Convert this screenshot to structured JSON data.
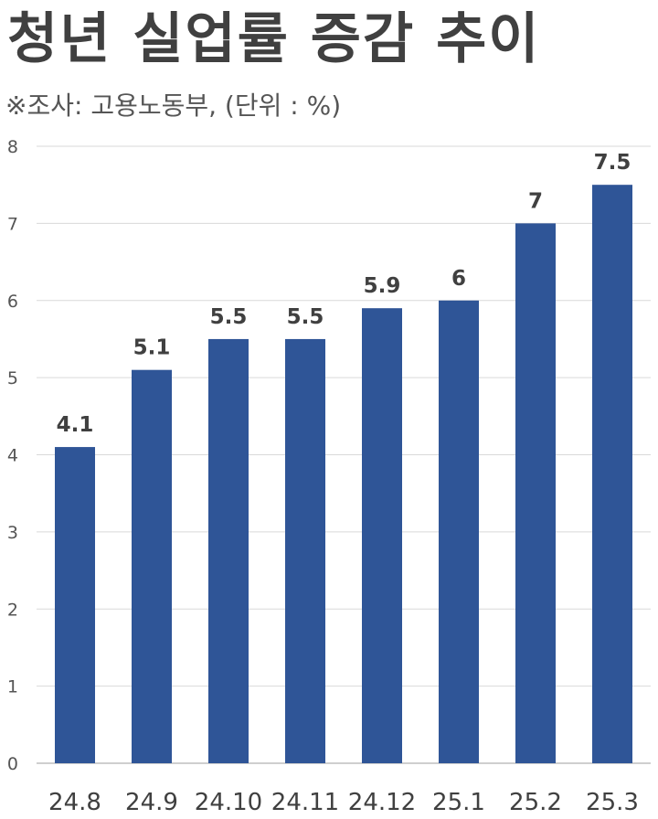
{
  "header": {
    "title": "청년 실업률 증감 추이",
    "subtitle": "※조사: 고용노동부, (단위 : %)"
  },
  "colors": {
    "bar": "#2f5597",
    "grid": "#d9d9d9",
    "axis": "#bfbfbf"
  },
  "chart_data": {
    "type": "bar",
    "title": "청년 실업률 증감 추이",
    "subtitle": "※조사: 고용노동부, (단위 : %)",
    "xlabel": "",
    "ylabel": "",
    "categories": [
      "24.8",
      "24.9",
      "24.10",
      "24.11",
      "24.12",
      "25.1",
      "25.2",
      "25.3"
    ],
    "values": [
      4.1,
      5.1,
      5.5,
      5.5,
      5.9,
      6,
      7,
      7.5
    ],
    "value_labels": [
      "4.1",
      "5.1",
      "5.5",
      "5.5",
      "5.9",
      "6",
      "7",
      "7.5"
    ],
    "ylim": [
      0,
      8
    ],
    "yticks": [
      "0",
      "1",
      "2",
      "3",
      "4",
      "5",
      "6",
      "7",
      "8"
    ],
    "grid": true,
    "legend": "none"
  }
}
